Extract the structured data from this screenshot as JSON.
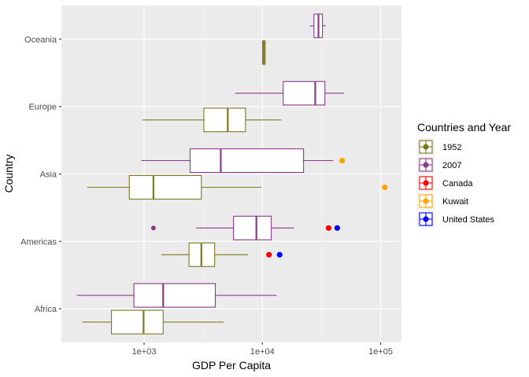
{
  "chart_data": {
    "type": "boxplot",
    "orientation": "horizontal",
    "xlabel": "GDP Per Capita",
    "ylabel": "Country",
    "x_scale": "log10",
    "xlim": [
      200,
      150000
    ],
    "x_ticks": [
      1000,
      10000,
      100000
    ],
    "x_tick_labels": [
      "1e+03",
      "1e+04",
      "1e+05"
    ],
    "categories": [
      "Africa",
      "Americas",
      "Asia",
      "Europe",
      "Oceania"
    ],
    "grid": true,
    "legend_position": "right",
    "legend": {
      "title": "Countries and Year",
      "entries": [
        {
          "label": "1952",
          "color": "#7a7a1f"
        },
        {
          "label": "2007",
          "color": "#8b3a8b"
        },
        {
          "label": "Canada",
          "color": "#ff0000"
        },
        {
          "label": "Kuwait",
          "color": "#ffa500"
        },
        {
          "label": "United States",
          "color": "#0000ff"
        }
      ]
    },
    "series": [
      {
        "name": "1952",
        "color": "#7a7a1f",
        "boxes": [
          {
            "category": "Africa",
            "min": 300,
            "q1": 530,
            "median": 990,
            "q3": 1450,
            "max": 4700
          },
          {
            "category": "Americas",
            "min": 1400,
            "q1": 2400,
            "median": 3050,
            "q3": 3950,
            "max": 7600
          },
          {
            "category": "Asia",
            "min": 330,
            "q1": 750,
            "median": 1200,
            "q3": 3050,
            "max": 9800
          },
          {
            "category": "Europe",
            "min": 970,
            "q1": 3200,
            "median": 5100,
            "q3": 7200,
            "max": 14500
          },
          {
            "category": "Oceania",
            "min": 10000,
            "q1": 10040,
            "median": 10300,
            "q3": 10560,
            "max": 10600
          }
        ]
      },
      {
        "name": "2007",
        "color": "#8b3a8b",
        "boxes": [
          {
            "category": "Africa",
            "min": 270,
            "q1": 820,
            "median": 1450,
            "q3": 4000,
            "max": 13200
          },
          {
            "category": "Americas",
            "min": 2750,
            "q1": 5700,
            "median": 8900,
            "q3": 11900,
            "max": 18500
          },
          {
            "category": "Asia",
            "min": 950,
            "q1": 2450,
            "median": 4450,
            "q3": 22300,
            "max": 39700
          },
          {
            "category": "Europe",
            "min": 5900,
            "q1": 15000,
            "median": 28000,
            "q3": 33800,
            "max": 49000
          },
          {
            "category": "Oceania",
            "min": 25200,
            "q1": 27300,
            "median": 29800,
            "q3": 32200,
            "max": 34400
          }
        ],
        "outliers": [
          {
            "category": "Americas",
            "value": 1200
          }
        ]
      }
    ],
    "highlight_points": [
      {
        "label": "Canada",
        "category": "Americas",
        "series": "1952",
        "value": 11370,
        "color": "#ff0000"
      },
      {
        "label": "Canada",
        "category": "Americas",
        "series": "2007",
        "value": 36300,
        "color": "#ff0000"
      },
      {
        "label": "United States",
        "category": "Americas",
        "series": "1952",
        "value": 13990,
        "color": "#0000ff"
      },
      {
        "label": "United States",
        "category": "Americas",
        "series": "2007",
        "value": 42950,
        "color": "#0000ff"
      },
      {
        "label": "Kuwait",
        "category": "Asia",
        "series": "1952",
        "value": 108400,
        "color": "#ffa500"
      },
      {
        "label": "Kuwait",
        "category": "Asia",
        "series": "2007",
        "value": 47300,
        "color": "#ffa500"
      }
    ]
  }
}
